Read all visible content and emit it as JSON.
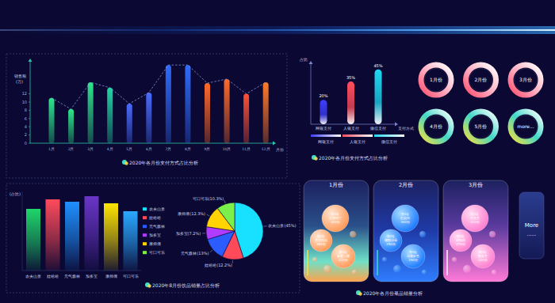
{
  "chart_data": [
    {
      "type": "bar",
      "title": "2020年各月份支付方式占比分析",
      "y_label": "销售额",
      "y_unit": "(万)",
      "x_label": "月份",
      "categories": [
        "1月",
        "2月",
        "3月",
        "4月",
        "5月",
        "6月",
        "7月",
        "8月",
        "9月",
        "10月",
        "11月",
        "12月"
      ],
      "values": [
        11,
        8.3,
        14.8,
        13.5,
        9.6,
        12.3,
        19,
        19,
        14.6,
        15.6,
        12,
        14.8
      ],
      "colors": [
        "#2ee68c",
        "#2ee68c",
        "#2ee68c",
        "#22d6a4",
        "#4a6cff",
        "#4a6cff",
        "#2f6bff",
        "#2f6bff",
        "#ff6a2a",
        "#ff6a2a",
        "#ff5033",
        "#ff7a2a"
      ],
      "ylim": [
        0,
        20
      ],
      "yticks": [
        0,
        2,
        4,
        6,
        8,
        10,
        12
      ],
      "line_style": "dashed",
      "grid": false
    },
    {
      "type": "bar",
      "title": "2020年各月份支付方式占比分析",
      "y_label": "占比",
      "x_label": "支付方式",
      "categories": [
        "网银支付",
        "人银支付",
        "微信支付"
      ],
      "values": [
        20,
        35,
        45
      ],
      "value_labels": [
        "20%",
        "35%",
        "45%"
      ],
      "data_labels": true,
      "colors": [
        "#3d3dff",
        "#ff4d5e",
        "#1fd8f2"
      ],
      "ylim": [
        0,
        50
      ],
      "tick_labels": false,
      "legend": "bottom"
    },
    {
      "type": "bar",
      "title": "2020年8月份饮品销量占比分析",
      "y_label": "(占比)",
      "categories": [
        "农夫山泉",
        "娃哈哈",
        "元气森林",
        "加多宝",
        "康师傅",
        "可口可乐"
      ],
      "values": [
        78,
        90,
        87,
        94,
        85,
        75
      ],
      "colors": [
        "#1fd66b",
        "#ff4a5a",
        "#1e90ff",
        "#6a35c8",
        "#ffe600",
        "#2aa8ff"
      ],
      "ylim": [
        0,
        100
      ],
      "tick_labels": false
    },
    {
      "type": "pie",
      "categories": [
        "农夫山泉",
        "娃哈哈",
        "元气森林",
        "加多宝",
        "康师傅",
        "可口可乐"
      ],
      "values": [
        45,
        12.2,
        13,
        7.2,
        12.3,
        10.3
      ],
      "value_labels": [
        "农夫山泉(45%)",
        "娃哈哈(12.2%)",
        "元气森林(13%)",
        "加多宝(7.2%)",
        "康师傅(12.3%)",
        "可口可乐(10.3%)"
      ],
      "data_labels": true,
      "colors": [
        "#18e0ff",
        "#ff4a5a",
        "#2b5cff",
        "#b03cff",
        "#ffd400",
        "#7cf04a"
      ],
      "legend": "left"
    }
  ],
  "month_rings": {
    "labels": [
      "1月份",
      "2月份",
      "3月份",
      "4月份",
      "5月份",
      "more..."
    ]
  },
  "dish_panel": {
    "title": "2020年各月份菜品销量分析",
    "columns": [
      {
        "label": "1月份",
        "items": [
          {
            "rank": "第1名",
            "name": "宫保鸡丁",
            "amount": "320份"
          },
          {
            "rank": "第2名",
            "name": "鱼香肉丝",
            "amount": "260份"
          },
          {
            "rank": "第3名",
            "name": "麻婆豆腐",
            "amount": "210份"
          }
        ]
      },
      {
        "label": "2月份",
        "items": [
          {
            "rank": "第1名",
            "name": "红烧肉",
            "amount": "300份"
          },
          {
            "rank": "第2名",
            "name": "糖醋排骨",
            "amount": "250份"
          },
          {
            "rank": "第3名",
            "name": "清蒸鲈鱼",
            "amount": "190份"
          }
        ]
      },
      {
        "label": "3月份",
        "items": [
          {
            "rank": "第1名",
            "name": "水煮鱼",
            "amount": "310份"
          },
          {
            "rank": "第2名",
            "name": "回锅肉",
            "amount": "270份"
          },
          {
            "rank": "第3名",
            "name": "酸菜鱼",
            "amount": "220份"
          }
        ]
      }
    ],
    "more": "More",
    "more_dots": "......"
  }
}
